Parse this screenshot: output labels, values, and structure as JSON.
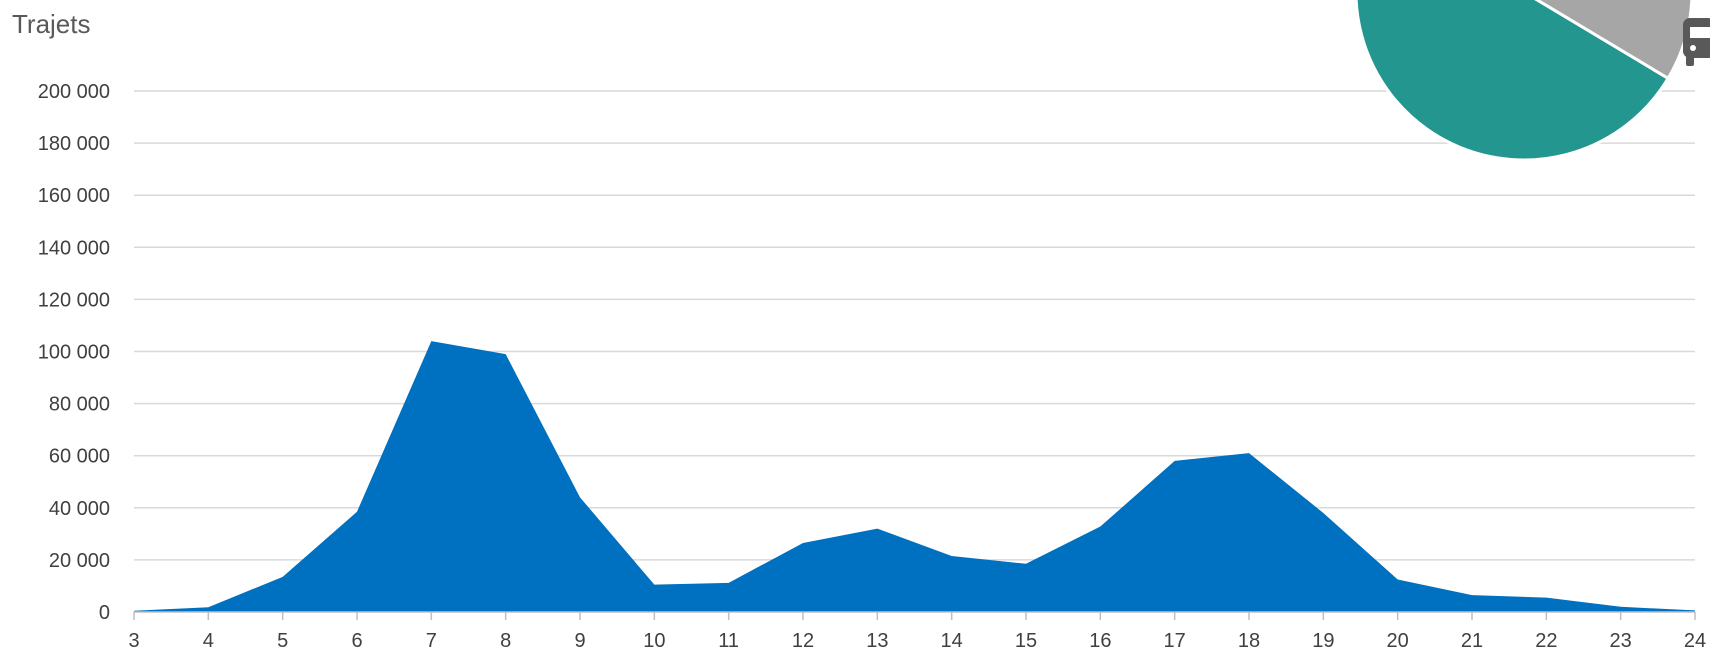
{
  "chart_data": [
    {
      "type": "area",
      "ylabel": "Trajets",
      "x": [
        3,
        4,
        5,
        6,
        7,
        8,
        9,
        10,
        11,
        12,
        13,
        14,
        15,
        16,
        17,
        18,
        19,
        20,
        21,
        22,
        23,
        24
      ],
      "series": [
        {
          "values": [
            500,
            1800,
            13500,
            38500,
            104000,
            99000,
            44000,
            10500,
            11200,
            26500,
            32000,
            21500,
            18500,
            32800,
            58000,
            61000,
            38000,
            12500,
            6500,
            5500,
            2000,
            600
          ]
        }
      ],
      "ylim": [
        0,
        200000
      ],
      "yticks": [
        "0",
        "20 000",
        "40 000",
        "60 000",
        "80 000",
        "100 000",
        "120 000",
        "140 000",
        "160 000",
        "180 000",
        "200 000"
      ],
      "xticks": [
        "3",
        "4",
        "5",
        "6",
        "7",
        "8",
        "9",
        "10",
        "11",
        "12",
        "13",
        "14",
        "15",
        "16",
        "17",
        "18",
        "19",
        "20",
        "21",
        "22",
        "23",
        "24"
      ],
      "grid": true,
      "colors": {
        "area": "#0070C0",
        "grid": "#D9D9D9",
        "tick_text": "#404040"
      }
    },
    {
      "type": "pie",
      "partial": "cropped at top-right corner",
      "values": [
        0.78,
        0.22
      ],
      "colors": [
        "#23968F",
        "#A6A6A6"
      ],
      "icon": "bus-icon"
    }
  ]
}
